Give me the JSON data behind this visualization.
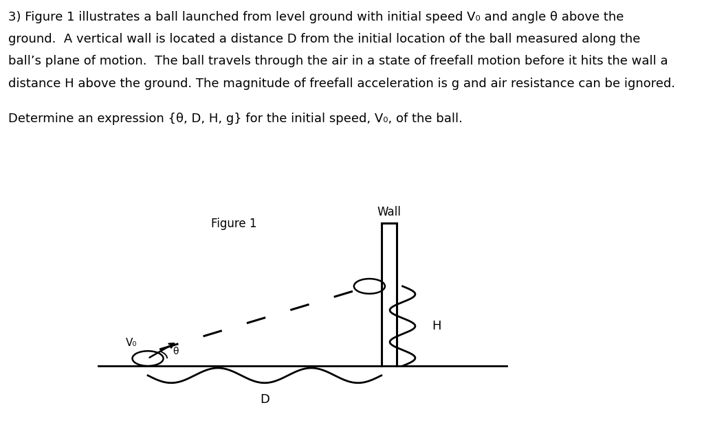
{
  "bg_color": "#ffffff",
  "text_color": "#000000",
  "line1": "3) Figure 1 illustrates a ball launched from level ground with initial speed V₀ and angle θ above the",
  "line2": "ground.  A vertical wall is located a distance D from the initial location of the ball measured along the",
  "line3": "ball’s plane of motion.  The ball travels through the air in a state of freefall motion before it hits the wall a",
  "line4": "distance H above the ground. The magnitude of freefall acceleration is g and air resistance can be ignored.",
  "line5": "",
  "line6": "Determine an expression {θ, D, H, g} for the initial speed, V₀, of the ball.",
  "figure_label": "Figure 1",
  "wall_label": "Wall",
  "H_label": "H",
  "D_label": "D",
  "V0_label": "V₀",
  "theta_label": "θ",
  "fontsize_text": 13,
  "fontsize_label": 12
}
